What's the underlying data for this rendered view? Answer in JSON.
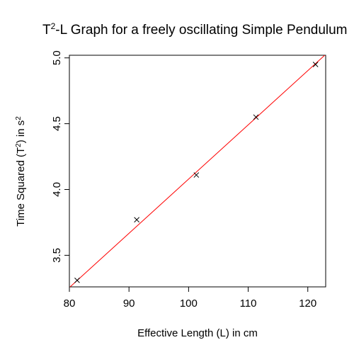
{
  "chart_data": {
    "type": "scatter",
    "title": {
      "base": "T",
      "sup": "2",
      "rest": "-L Graph for a freely oscillating Simple Pendulum"
    },
    "xlabel": "Effective Length (L) in cm",
    "ylabel": {
      "pre": "Time Squared (T",
      "sup1": "2",
      "mid": ") in s",
      "sup2": "2"
    },
    "xlim": [
      80.0,
      123.0
    ],
    "ylim": [
      3.26,
      5.02
    ],
    "xticks": [
      80,
      90,
      100,
      110,
      120
    ],
    "xtick_labels": [
      "80",
      "90",
      "100",
      "110",
      "120"
    ],
    "yticks": [
      3.5,
      4.0,
      4.5,
      5.0
    ],
    "ytick_labels": [
      "3.5",
      "4.0",
      "4.5",
      "5.0"
    ],
    "grid": false,
    "marker": "x",
    "series": [
      {
        "x": [
          81.3,
          91.3,
          101.3,
          111.3,
          121.3
        ],
        "y": [
          3.31,
          3.77,
          4.11,
          4.55,
          4.95
        ]
      }
    ],
    "fit_line": {
      "slope": 0.0412,
      "intercept": -0.041,
      "color": "#ff0000"
    },
    "colors": {
      "points": "#000000",
      "fit": "#ff0000",
      "axes": "#000000"
    }
  }
}
